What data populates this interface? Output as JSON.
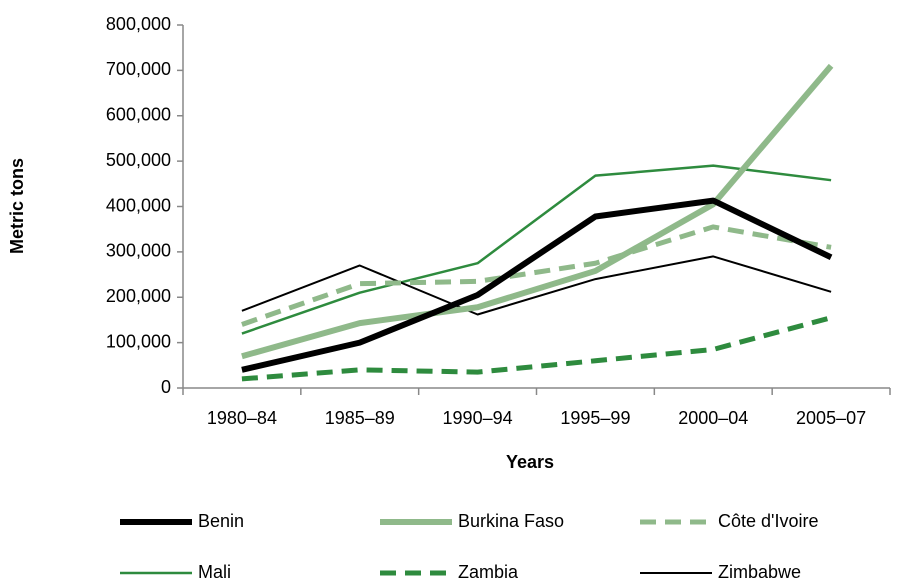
{
  "chart_data": {
    "type": "line",
    "y_label": "Metric tons",
    "x_label": "Years",
    "categories": [
      "1980–84",
      "1985–89",
      "1990–94",
      "1995–99",
      "2000–04",
      "2005–07"
    ],
    "series": [
      {
        "name": "Benin",
        "color": "#000000",
        "dashed": false,
        "values": [
          40000,
          100000,
          205000,
          378000,
          413000,
          288000
        ]
      },
      {
        "name": "Burkina Faso",
        "color": "#8fb98a",
        "dashed": false,
        "values": [
          70000,
          143000,
          178000,
          258000,
          405000,
          710000
        ]
      },
      {
        "name": "Côte d'Ivoire",
        "color": "#8fb98a",
        "dashed": true,
        "values": [
          140000,
          230000,
          235000,
          275000,
          355000,
          310000
        ]
      },
      {
        "name": "Mali",
        "color": "#2e8b3e",
        "dashed": false,
        "values": [
          120000,
          210000,
          275000,
          468000,
          490000,
          458000
        ]
      },
      {
        "name": "Zambia",
        "color": "#2e8b3e",
        "dashed": true,
        "values": [
          20000,
          40000,
          35000,
          60000,
          85000,
          155000
        ]
      },
      {
        "name": "Zimbabwe",
        "color": "#000000",
        "dashed": false,
        "values": [
          170000,
          270000,
          162000,
          240000,
          290000,
          212000
        ]
      }
    ],
    "ylim": [
      0,
      800000
    ],
    "yticks": [
      0,
      {
        "value": 100000,
        "label": "100,000"
      },
      {
        "value": 200000,
        "label": "200,000"
      },
      {
        "value": 300000,
        "label": "300,000"
      },
      {
        "value": 400000,
        "label": "400,000"
      },
      {
        "value": 500000,
        "label": "500,000"
      },
      {
        "value": 600000,
        "label": "600,000"
      },
      {
        "value": 700000,
        "label": "700,000"
      },
      {
        "value": 800000,
        "label": "800,000"
      }
    ]
  }
}
